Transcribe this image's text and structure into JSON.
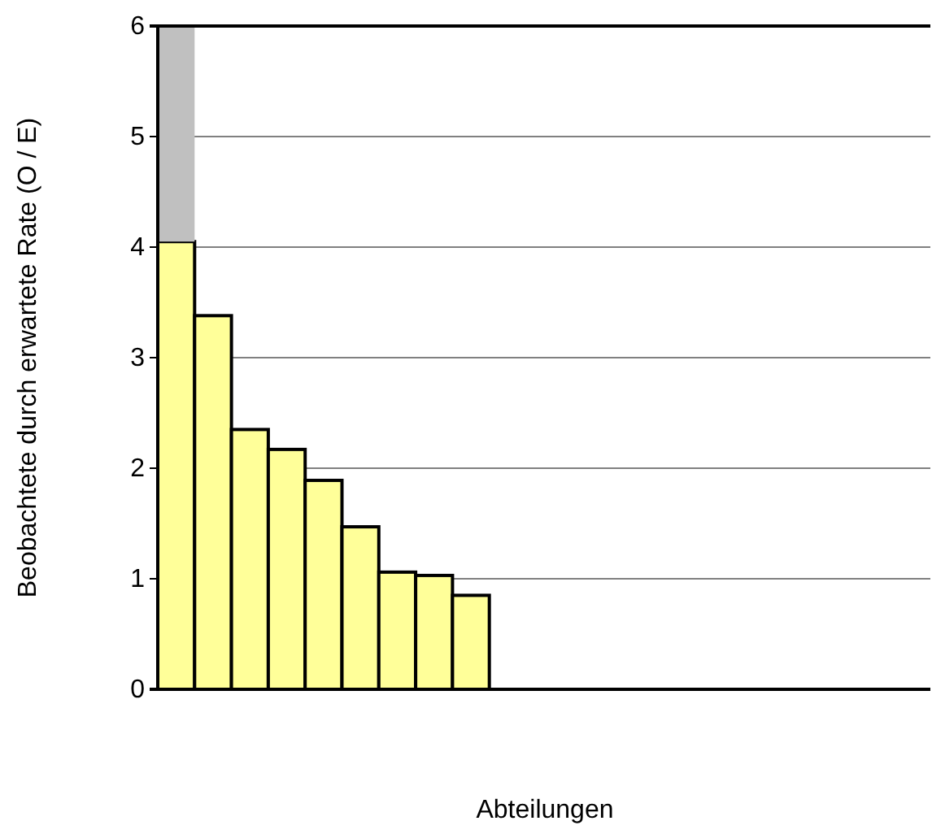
{
  "chart_data": {
    "type": "bar",
    "stacked": true,
    "ylabel": "Beobachtete durch erwartete Rate (O / E)",
    "xlabel": "Abteilungen",
    "categories": [
      null,
      null,
      null,
      null,
      null,
      null,
      null,
      null,
      null,
      null,
      null,
      null,
      null,
      null,
      null,
      null,
      null,
      null,
      null,
      null,
      null
    ],
    "series": [
      {
        "color": "#ffff99",
        "values": [
          4.05,
          3.38,
          2.35,
          2.17,
          1.89,
          1.47,
          1.06,
          1.03,
          0.85,
          null,
          null,
          null,
          null,
          null,
          null,
          null,
          null,
          null,
          null,
          null,
          null
        ]
      },
      {
        "color": "#c0c0c0",
        "values": [
          1.95,
          null,
          null,
          null,
          null,
          null,
          null,
          null,
          null,
          null,
          null,
          null,
          null,
          null,
          null,
          null,
          null,
          null,
          null,
          null,
          null
        ]
      }
    ],
    "ylim": [
      0,
      6
    ],
    "yticks": [
      0,
      1,
      2,
      3,
      4,
      5,
      6
    ],
    "grid": "y"
  }
}
